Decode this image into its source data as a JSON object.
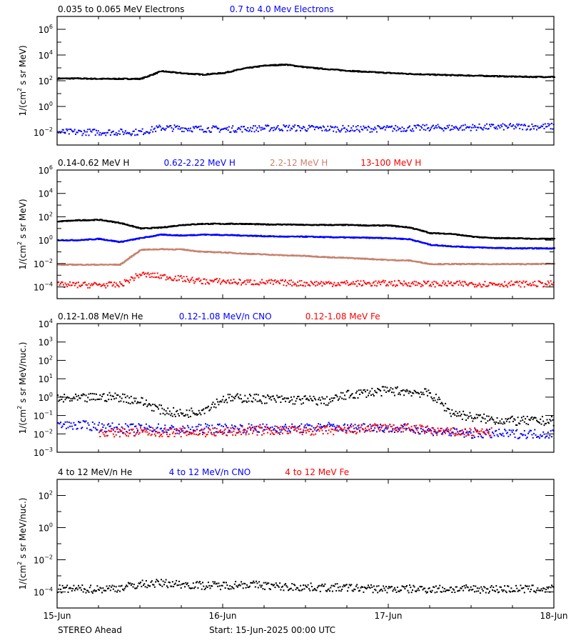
{
  "chart_data": [
    {
      "type": "scatter",
      "ylabel": "1/(cm² s sr MeV)",
      "ylabel_parts": [
        "1/(cm",
        "2",
        " s sr MeV)"
      ],
      "yscale": "log",
      "ylim": [
        0.001,
        10000000
      ],
      "ytick_exponents": [
        -2,
        0,
        2,
        4,
        6
      ],
      "x_hours": [
        0,
        3,
        6,
        9,
        12,
        15,
        18,
        21,
        24,
        27,
        30,
        33,
        36,
        39,
        42,
        45,
        48,
        51,
        54,
        57,
        60,
        63,
        66,
        69,
        72
      ],
      "series": [
        {
          "name": "0.035 to 0.065 MeV Electrons",
          "color": "#000000",
          "style": "line",
          "values": [
            150,
            150,
            140,
            140,
            140,
            550,
            380,
            300,
            400,
            900,
            1500,
            1800,
            1100,
            800,
            600,
            480,
            400,
            340,
            300,
            270,
            250,
            230,
            210,
            200,
            200
          ]
        },
        {
          "name": "0.7 to 4.0 Mev Electrons",
          "color": "#0000ff",
          "style": "dots",
          "values": [
            0.01,
            0.01,
            0.01,
            0.01,
            0.01,
            0.022,
            0.02,
            0.018,
            0.017,
            0.018,
            0.02,
            0.022,
            0.02,
            0.019,
            0.018,
            0.018,
            0.019,
            0.02,
            0.022,
            0.022,
            0.024,
            0.025,
            0.026,
            0.027,
            0.028
          ]
        }
      ]
    },
    {
      "type": "scatter",
      "ylabel": "1/(cm² s sr MeV)",
      "ylabel_parts": [
        "1/(cm",
        "2",
        " s sr MeV)"
      ],
      "yscale": "log",
      "ylim": [
        1e-05,
        1000000
      ],
      "ytick_exponents": [
        -4,
        -2,
        0,
        2,
        4,
        6
      ],
      "x_hours": [
        0,
        3,
        6,
        9,
        12,
        15,
        18,
        21,
        24,
        27,
        30,
        33,
        36,
        39,
        42,
        45,
        48,
        51,
        54,
        57,
        60,
        63,
        66,
        69,
        72
      ],
      "series": [
        {
          "name": "0.14-0.62 MeV H",
          "color": "#000000",
          "style": "line",
          "values": [
            40,
            50,
            55,
            30,
            10,
            12,
            20,
            25,
            25,
            25,
            22,
            22,
            20,
            20,
            20,
            18,
            18,
            12,
            4,
            3.5,
            2,
            1.5,
            1.5,
            1.3,
            1.3
          ]
        },
        {
          "name": "0.62-2.22 MeV H",
          "color": "#0000ff",
          "style": "line",
          "values": [
            1,
            1,
            1.3,
            0.7,
            1.5,
            3,
            2.5,
            3,
            2.8,
            2.5,
            2.2,
            2,
            2,
            1.8,
            1.7,
            1.6,
            1.5,
            1.2,
            0.4,
            0.3,
            0.25,
            0.22,
            0.2,
            0.2,
            0.2
          ]
        },
        {
          "name": "2.2-12 MeV H",
          "color": "#c8826e",
          "style": "line",
          "values": [
            0.008,
            0.008,
            0.008,
            0.008,
            0.15,
            0.17,
            0.16,
            0.1,
            0.09,
            0.07,
            0.06,
            0.05,
            0.045,
            0.035,
            0.03,
            0.025,
            0.02,
            0.018,
            0.009,
            0.009,
            0.009,
            0.009,
            0.009,
            0.009,
            0.01
          ]
        },
        {
          "name": "13-100 MeV H",
          "color": "#ff0000",
          "style": "dots",
          "values": [
            0.00015,
            0.00015,
            0.00015,
            0.00015,
            0.0012,
            0.0008,
            0.0005,
            0.0003,
            0.0003,
            0.00025,
            0.00025,
            0.00022,
            0.0002,
            0.0002,
            0.0002,
            0.0002,
            0.0002,
            0.0002,
            0.00018,
            0.00018,
            0.00018,
            0.00018,
            0.00018,
            0.00018,
            0.00018
          ]
        }
      ]
    },
    {
      "type": "scatter",
      "ylabel": "1/(cm² s sr MeV/nuc.)",
      "ylabel_parts": [
        "1/(cm",
        "2",
        " s sr MeV/nuc.)"
      ],
      "yscale": "log",
      "ylim": [
        0.001,
        10000
      ],
      "ytick_exponents": [
        -3,
        -2,
        -1,
        0,
        1,
        2,
        3,
        4
      ],
      "x_hours": [
        0,
        3,
        6,
        9,
        12,
        15,
        18,
        21,
        24,
        27,
        30,
        33,
        36,
        39,
        42,
        45,
        48,
        51,
        54,
        57,
        60,
        63,
        66,
        69,
        72
      ],
      "series": [
        {
          "name": "0.12-1.08 MeV/n He",
          "color": "#000000",
          "style": "dots",
          "values": [
            0.8,
            0.8,
            1.0,
            1.0,
            0.6,
            0.2,
            0.12,
            0.2,
            0.8,
            0.9,
            0.8,
            0.7,
            0.7,
            0.6,
            1.3,
            1.8,
            2.2,
            2.0,
            1.5,
            0.15,
            0.08,
            0.06,
            0.05,
            0.05,
            0.05
          ]
        },
        {
          "name": "0.12-1.08 MeV/n CNO",
          "color": "#0000ff",
          "style": "dots",
          "values": [
            0.03,
            0.03,
            0.025,
            0.02,
            0.02,
            0.02,
            0.015,
            0.02,
            0.02,
            0.02,
            0.02,
            0.02,
            0.02,
            0.025,
            0.02,
            0.025,
            0.02,
            0.02,
            0.015,
            0.012,
            0.01,
            0.01,
            0.01,
            0.01,
            0.01
          ]
        },
        {
          "name": "0.12-1.08 MeV Fe",
          "color": "#ff0000",
          "style": "dots",
          "values": [
            null,
            null,
            0.012,
            0.012,
            0.012,
            0.012,
            0.012,
            0.012,
            0.012,
            0.015,
            0.015,
            0.015,
            0.015,
            0.015,
            0.015,
            0.02,
            0.02,
            0.02,
            0.015,
            0.012,
            0.012,
            null,
            null,
            null,
            null
          ]
        }
      ]
    },
    {
      "type": "scatter",
      "ylabel": "1/(cm² s sr MeV/nuc.)",
      "ylabel_parts": [
        "1/(cm",
        "2",
        " s sr MeV/nuc.)"
      ],
      "yscale": "log",
      "ylim": [
        1e-05,
        1000
      ],
      "ytick_exponents": [
        -4,
        -2,
        0,
        2
      ],
      "x_hours": [
        0,
        3,
        6,
        9,
        12,
        15,
        18,
        21,
        24,
        27,
        30,
        33,
        36,
        39,
        42,
        45,
        48,
        51,
        54,
        57,
        60,
        63,
        66,
        69,
        72
      ],
      "series": [
        {
          "name": "4 to 12 MeV/n He",
          "color": "#000000",
          "style": "dots",
          "values": [
            0.00015,
            0.00015,
            0.00015,
            0.00018,
            0.0003,
            0.00035,
            0.0003,
            0.00025,
            0.00025,
            0.0003,
            0.00025,
            0.0002,
            0.0002,
            0.00018,
            0.00018,
            0.00016,
            0.00015,
            0.00015,
            0.00015,
            0.00015,
            0.00015,
            0.00015,
            0.00015,
            0.00015,
            0.00015
          ]
        },
        {
          "name": "4 to 12 MeV/n CNO",
          "color": "#0000ff",
          "style": "sparse",
          "values": [
            null,
            null,
            1e-05,
            null,
            1e-05,
            null,
            null,
            null,
            1e-05,
            1e-05,
            1e-05,
            1e-05,
            1e-05,
            1e-05,
            1e-05,
            null,
            null,
            null,
            1e-05,
            null,
            null,
            null,
            null,
            null,
            null
          ]
        },
        {
          "name": "4 to 12 MeV Fe",
          "color": "#ff0000",
          "style": "sparse",
          "values": [
            null,
            null,
            null,
            null,
            null,
            1e-05,
            null,
            null,
            1e-05,
            1e-05,
            1e-05,
            1e-05,
            1e-05,
            1e-05,
            1e-05,
            1e-05,
            null,
            null,
            null,
            null,
            null,
            null,
            null,
            null,
            null
          ]
        }
      ]
    }
  ],
  "xaxis": {
    "range_days": [
      "15-Jun",
      "18-Jun"
    ],
    "tick_labels": [
      "15-Jun",
      "16-Jun",
      "17-Jun",
      "18-Jun"
    ],
    "minor_tick_hours": 6
  },
  "footer": {
    "spacecraft": "STEREO Ahead",
    "start": "Start: 15-Jun-2025 00:00 UTC"
  }
}
